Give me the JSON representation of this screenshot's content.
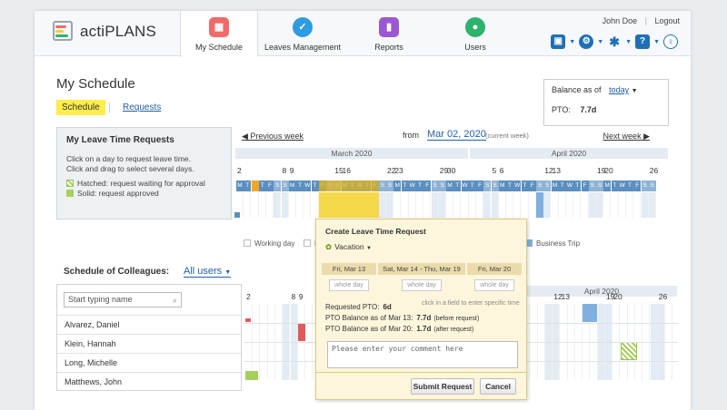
{
  "app": {
    "brand": "actiPLANS",
    "nav": [
      {
        "label": "My Schedule",
        "icon": "calendar-icon",
        "color": "#f06a6a"
      },
      {
        "label": "Leaves Management",
        "icon": "palm-check-icon",
        "color": "#2f9be0"
      },
      {
        "label": "Reports",
        "icon": "bar-chart-icon",
        "color": "#9b59d0"
      },
      {
        "label": "Users",
        "icon": "user-icon",
        "color": "#2db36b"
      }
    ],
    "user": {
      "name": "John Doe",
      "logout": "Logout"
    }
  },
  "page": {
    "title": "My Schedule",
    "subtabs": {
      "active": "Schedule",
      "other": "Requests"
    },
    "balance": {
      "label": "Balance as of",
      "period": "today",
      "pto_label": "PTO:",
      "pto_value": "7.7d"
    }
  },
  "my_requests": {
    "heading": "My Leave Time Requests",
    "line1": "Click on a day to request leave time.",
    "line2": "Click and drag to select several days.",
    "hatched": "Hatched: request waiting for approval",
    "solid": "Solid: request approved"
  },
  "calendar": {
    "prev": "Previous week",
    "from_label": "from",
    "from_date": "Mar 02, 2020",
    "current_week": "(current week)",
    "next": "Next week",
    "months": [
      "March 2020",
      "April 2020"
    ],
    "day_numbers": [
      "2",
      "8",
      "9",
      "15",
      "16",
      "22",
      "23",
      "29",
      "30",
      "5",
      "6",
      "12",
      "13",
      "19",
      "20",
      "26"
    ],
    "day_letters": [
      "M",
      "T",
      "W",
      "T",
      "F",
      "S",
      "S",
      "M",
      "T",
      "W",
      "T",
      "F",
      "S",
      "S",
      "M",
      "T",
      "W",
      "T",
      "F",
      "S",
      "S",
      "M",
      "T",
      "W",
      "T",
      "F",
      "S",
      "S",
      "M",
      "T",
      "W",
      "T",
      "F",
      "S",
      "S",
      "M",
      "T",
      "W",
      "T",
      "F",
      "S",
      "S",
      "M",
      "T",
      "W",
      "T",
      "F",
      "S",
      "S",
      "M",
      "T",
      "W",
      "T",
      "F",
      "S",
      "S"
    ]
  },
  "legend": {
    "working_day": "Working day",
    "n": "N",
    "business_trip": "Business Trip"
  },
  "colleagues": {
    "heading": "Schedule of Colleagues:",
    "filter": "All users",
    "search_placeholder": "Start typing name",
    "month": "April 2020",
    "day_numbers": [
      "2",
      "8",
      "9",
      "12",
      "13",
      "19",
      "20",
      "26"
    ],
    "rows": [
      "Alvarez, Daniel",
      "Klein, Hannah",
      "Long, Michelle",
      "Matthews, John"
    ]
  },
  "popup": {
    "title": "Create Leave Time Request",
    "type": "Vacation",
    "cols": [
      {
        "label": "Fri, Mar 13",
        "value": "whole day"
      },
      {
        "label": "Sat, Mar 14 - Thu, Mar 19",
        "value": "whole day"
      },
      {
        "label": "Fri, Mar 20",
        "value": "whole day"
      }
    ],
    "hint": "click in a field to enter specific time",
    "requested_label": "Requested PTO:",
    "requested_value": "6d",
    "bal1_label": "PTO Balance as of Mar 13:",
    "bal1_value": "7.7d",
    "bal1_note": "(before request)",
    "bal2_label": "PTO Balance as of Mar 20:",
    "bal2_value": "1.7d",
    "bal2_note": "(after request)",
    "comment_placeholder": "Please enter your comment here",
    "submit": "Submit Request",
    "cancel": "Cancel"
  }
}
